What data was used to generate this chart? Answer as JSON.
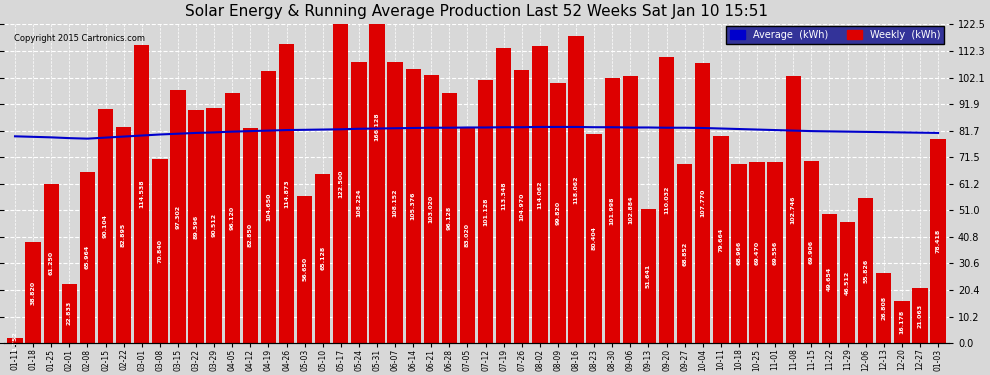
{
  "title": "Solar Energy & Running Average Production Last 52 Weeks Sat Jan 10 15:51",
  "copyright": "Copyright 2015 Cartronics.com",
  "categories": [
    "01-11",
    "01-18",
    "01-25",
    "02-01",
    "02-08",
    "02-15",
    "02-22",
    "03-01",
    "03-08",
    "03-15",
    "03-22",
    "03-29",
    "04-05",
    "04-12",
    "04-19",
    "04-26",
    "05-03",
    "05-10",
    "05-17",
    "05-24",
    "05-31",
    "06-07",
    "06-14",
    "06-21",
    "06-28",
    "07-05",
    "07-12",
    "07-19",
    "07-26",
    "08-02",
    "08-09",
    "08-16",
    "08-23",
    "08-30",
    "09-06",
    "09-13",
    "09-20",
    "09-27",
    "10-04",
    "10-11",
    "10-18",
    "10-25",
    "11-01",
    "11-08",
    "11-15",
    "11-22",
    "11-29",
    "12-06",
    "12-13",
    "12-20",
    "12-27",
    "01-03"
  ],
  "weekly_values": [
    1.752,
    38.82,
    61.25,
    22.833,
    65.964,
    90.104,
    82.895,
    114.538,
    70.84,
    97.302,
    89.596,
    90.512,
    96.12,
    82.85,
    104.65,
    114.873,
    56.65,
    65.128,
    122.5,
    108.224,
    166.128,
    108.152,
    105.376,
    103.02,
    96.128,
    83.02,
    101.128,
    113.348,
    104.97,
    114.062,
    99.82,
    118.062,
    80.404,
    101.998,
    102.884,
    51.641,
    110.032,
    68.852,
    107.77,
    79.664,
    68.966,
    69.47,
    69.556,
    102.746,
    69.906,
    49.654,
    46.512,
    55.826,
    26.808,
    16.178,
    21.063,
    78.418
  ],
  "average_values": [
    79.5,
    79.3,
    79.1,
    78.8,
    78.6,
    79.0,
    79.4,
    79.8,
    80.2,
    80.5,
    80.8,
    81.0,
    81.3,
    81.5,
    81.7,
    81.9,
    82.0,
    82.1,
    82.2,
    82.4,
    82.5,
    82.6,
    82.7,
    82.8,
    82.8,
    82.9,
    82.9,
    83.0,
    83.0,
    83.1,
    83.1,
    83.1,
    83.0,
    83.0,
    82.9,
    82.9,
    82.8,
    82.8,
    82.7,
    82.5,
    82.3,
    82.1,
    81.9,
    81.7,
    81.5,
    81.4,
    81.3,
    81.2,
    81.1,
    81.0,
    80.9,
    80.8
  ],
  "bar_color": "#dd0000",
  "line_color": "#0000cc",
  "bg_color": "#d8d8d8",
  "grid_color": "#ffffff",
  "ylabel_right": [
    "0.0",
    "10.2",
    "20.4",
    "30.6",
    "40.8",
    "51.0",
    "61.2",
    "71.5",
    "81.7",
    "91.9",
    "102.1",
    "112.3",
    "122.5"
  ],
  "ytick_values": [
    0.0,
    10.2,
    20.4,
    30.6,
    40.8,
    51.0,
    61.2,
    71.5,
    81.7,
    91.9,
    102.1,
    112.3,
    122.5
  ],
  "legend_avg_color": "#0000cc",
  "legend_weekly_color": "#dd0000"
}
